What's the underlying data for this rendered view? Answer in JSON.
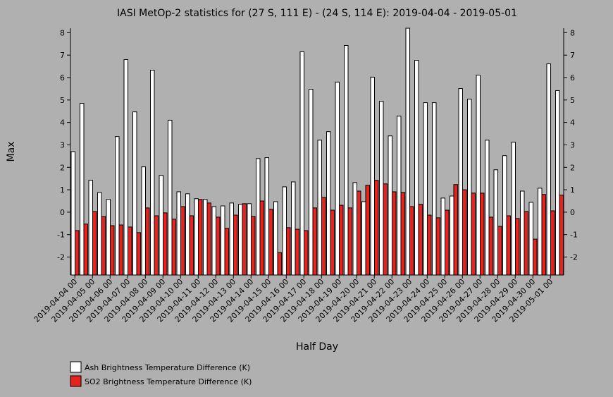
{
  "chart_data": {
    "type": "bar",
    "title": "IASI MetOp-2 statistics for (27 S, 111 E) - (24 S, 114 E): 2019-04-04 - 2019-05-01",
    "x_label": "Half Day",
    "y_label": "Max",
    "categories": [
      "2019-04-04 00",
      null,
      "2019-04-05 00",
      null,
      "2019-04-06 00",
      null,
      "2019-04-07 00",
      null,
      "2019-04-08 00",
      null,
      "2019-04-09 00",
      null,
      "2019-04-10 00",
      null,
      "2019-04-11 00",
      null,
      "2019-04-12 00",
      null,
      "2019-04-13 00",
      null,
      "2019-04-14 00",
      null,
      "2019-04-15 00",
      null,
      "2019-04-16 00",
      null,
      "2019-04-17 00",
      null,
      "2019-04-18 00",
      null,
      "2019-04-19 00",
      null,
      "2019-04-20 00",
      null,
      "2019-04-21 00",
      null,
      "2019-04-22 00",
      null,
      "2019-04-23 00",
      null,
      "2019-04-24 00",
      null,
      "2019-04-25 00",
      null,
      "2019-04-26 00",
      null,
      "2019-04-27 00",
      null,
      "2019-04-28 00",
      null,
      "2019-04-29 00",
      null,
      "2019-04-30 00",
      null,
      "2019-05-01 00",
      null
    ],
    "series": [
      {
        "name": "Ash Brightness Temperature Difference (K)",
        "color": "#ffffff",
        "values": [
          2.7,
          4.85,
          1.42,
          0.88,
          0.57,
          3.37,
          6.8,
          4.47,
          2.02,
          6.33,
          1.64,
          4.1,
          0.91,
          0.82,
          0.6,
          0.57,
          0.25,
          0.28,
          0.41,
          0.35,
          0.38,
          2.39,
          2.43,
          0.47,
          1.13,
          1.35,
          7.15,
          5.48,
          3.21,
          3.59,
          5.8,
          7.43,
          1.32,
          0.47,
          6.02,
          4.94,
          3.4,
          4.28,
          8.2,
          6.77,
          4.88,
          4.88,
          0.63,
          0.72,
          5.51,
          5.04,
          6.11,
          3.21,
          1.89,
          2.52,
          3.12,
          0.94,
          0.44,
          1.07,
          6.61,
          5.42
        ]
      },
      {
        "name": "SO2 Brightness Temperature Difference (K)",
        "color": "#e8231e",
        "values": [
          -0.82,
          -0.53,
          0.03,
          -0.19,
          -0.6,
          -0.57,
          -0.66,
          -0.91,
          0.19,
          -0.16,
          -0.03,
          -0.31,
          0.25,
          -0.16,
          0.57,
          0.41,
          -0.22,
          -0.72,
          -0.13,
          0.38,
          -0.19,
          0.5,
          0.13,
          -1.8,
          -0.69,
          -0.76,
          -0.82,
          0.19,
          0.66,
          0.09,
          0.31,
          0.19,
          0.94,
          1.2,
          1.42,
          1.26,
          0.91,
          0.88,
          0.25,
          0.35,
          -0.13,
          -0.25,
          0.09,
          1.23,
          1.0,
          0.85,
          0.85,
          -0.22,
          -0.63,
          -0.16,
          -0.28,
          0.03,
          -1.2,
          0.79,
          0.06,
          0.76
        ]
      }
    ],
    "ylim": [
      -2.8,
      8.2
    ],
    "yticks": [
      -2,
      -1,
      0,
      1,
      2,
      3,
      4,
      5,
      6,
      7,
      8
    ]
  }
}
